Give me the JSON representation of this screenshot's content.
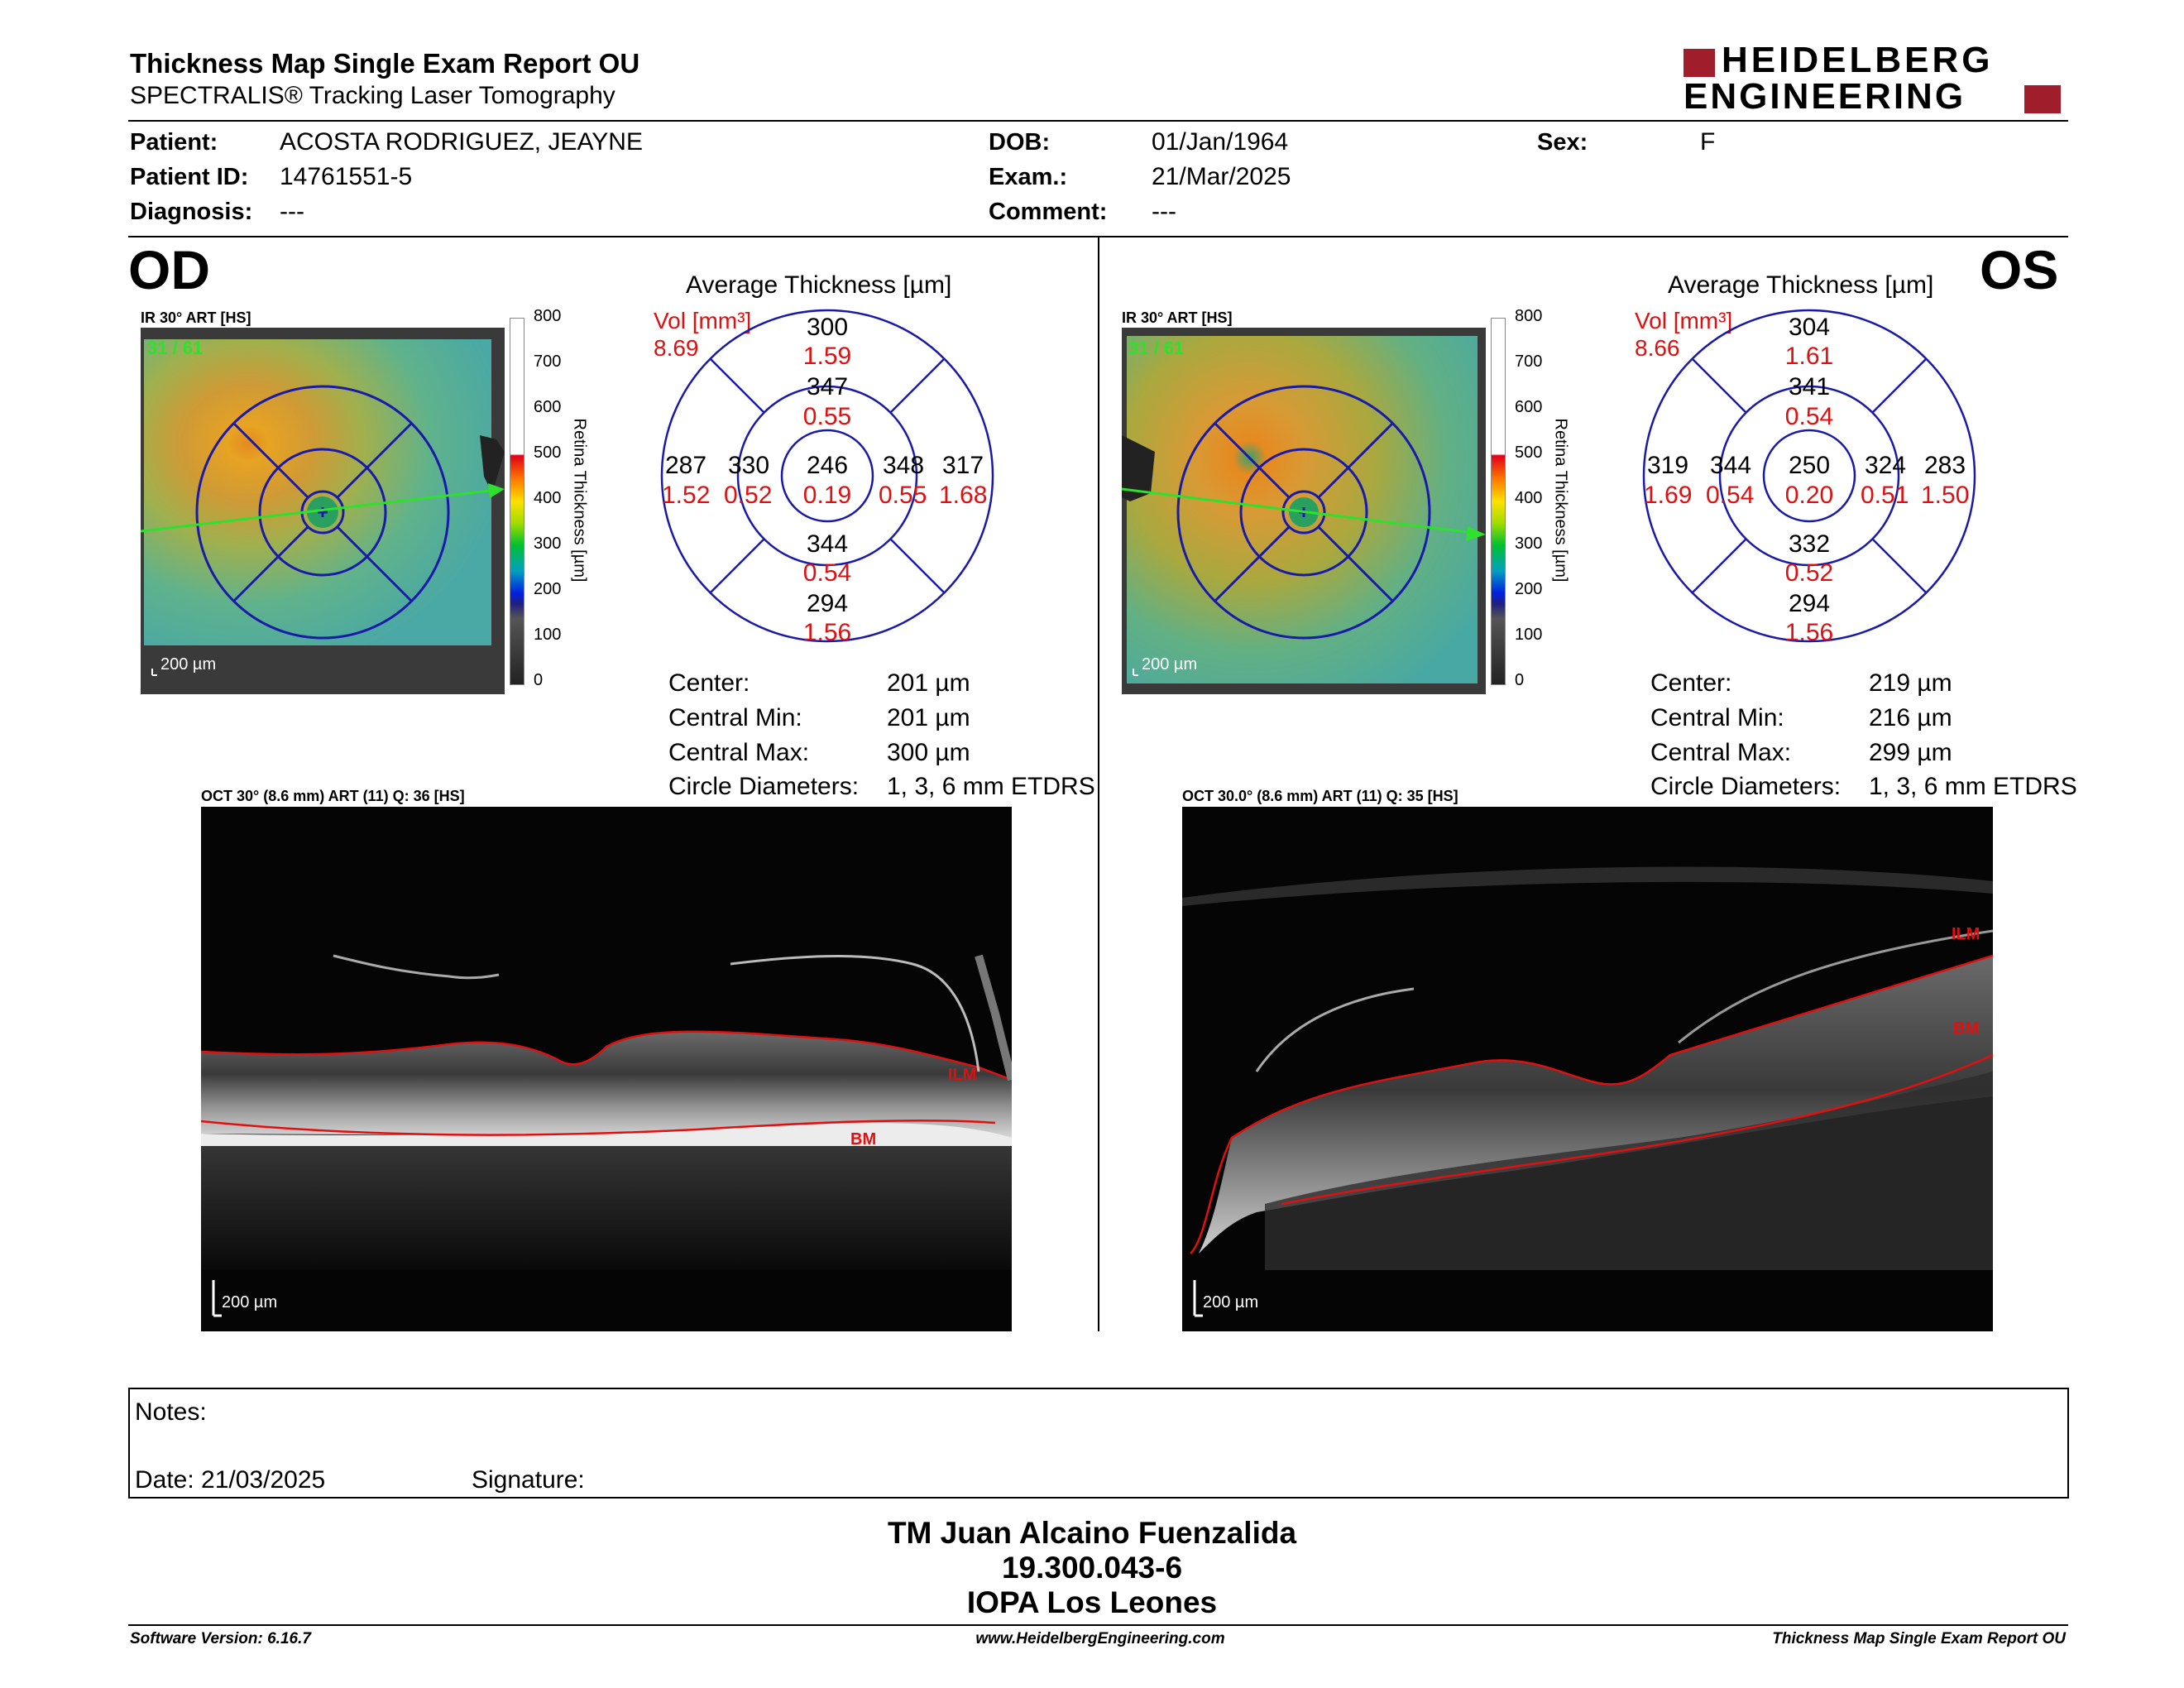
{
  "header": {
    "title": "Thickness Map Single Exam Report OU",
    "subtitle": "SPECTRALIS® Tracking Laser Tomography",
    "logo_line1": "HEIDELBERG",
    "logo_line2": "ENGINEERING"
  },
  "patient": {
    "patient_label": "Patient:",
    "patient_value": "ACOSTA RODRIGUEZ, JEAYNE",
    "id_label": "Patient ID:",
    "id_value": "14761551-5",
    "diagnosis_label": "Diagnosis:",
    "diagnosis_value": "---",
    "dob_label": "DOB:",
    "dob_value": "01/Jan/1964",
    "exam_label": "Exam.:",
    "exam_value": "21/Mar/2025",
    "comment_label": "Comment:",
    "comment_value": "---",
    "sex_label": "Sex:",
    "sex_value": "F"
  },
  "colorbar": {
    "ticks": [
      "800",
      "700",
      "600",
      "500",
      "400",
      "300",
      "200",
      "100",
      "0"
    ],
    "label": "Retina Thickness [µm]"
  },
  "od": {
    "eye": "OD",
    "ir_title": "IR 30° ART [HS]",
    "frame": "31 / 61",
    "scale": "200 µm",
    "avg_title": "Average Thickness [µm]",
    "vol_label": "Vol [mm³]",
    "vol_value": "8.69",
    "center_t": "246",
    "center_v": "0.19",
    "inner_sup_t": "347",
    "inner_sup_v": "0.55",
    "inner_inf_t": "344",
    "inner_inf_v": "0.54",
    "inner_left_t": "330",
    "inner_left_v": "0.52",
    "inner_right_t": "348",
    "inner_right_v": "0.55",
    "outer_sup_t": "300",
    "outer_sup_v": "1.59",
    "outer_inf_t": "294",
    "outer_inf_v": "1.56",
    "outer_left_t": "287",
    "outer_left_v": "1.52",
    "outer_right_t": "317",
    "outer_right_v": "1.68",
    "center_label": "Center:",
    "center_value": "201 µm",
    "cmin_label": "Central Min:",
    "cmin_value": "201 µm",
    "cmax_label": "Central Max:",
    "cmax_value": "300 µm",
    "diam_label": "Circle Diameters:",
    "diam_value": "1, 3, 6 mm ETDRS",
    "oct_title": "OCT 30° (8.6 mm) ART (11) Q: 36 [HS]",
    "oct_scale": "200 µm",
    "ilm": "ILM",
    "bm": "BM"
  },
  "os": {
    "eye": "OS",
    "ir_title": "IR 30° ART [HS]",
    "frame": "31 / 61",
    "scale": "200 µm",
    "avg_title": "Average Thickness [µm]",
    "vol_label": "Vol [mm³]",
    "vol_value": "8.66",
    "center_t": "250",
    "center_v": "0.20",
    "inner_sup_t": "341",
    "inner_sup_v": "0.54",
    "inner_inf_t": "332",
    "inner_inf_v": "0.52",
    "inner_left_t": "344",
    "inner_left_v": "0.54",
    "inner_right_t": "324",
    "inner_right_v": "0.51",
    "outer_sup_t": "304",
    "outer_sup_v": "1.61",
    "outer_inf_t": "294",
    "outer_inf_v": "1.56",
    "outer_left_t": "319",
    "outer_left_v": "1.69",
    "outer_right_t": "283",
    "outer_right_v": "1.50",
    "center_label": "Center:",
    "center_value": "219 µm",
    "cmin_label": "Central Min:",
    "cmin_value": "216 µm",
    "cmax_label": "Central Max:",
    "cmax_value": "299 µm",
    "diam_label": "Circle Diameters:",
    "diam_value": "1, 3, 6 mm ETDRS",
    "oct_title": "OCT 30.0° (8.6 mm) ART (11) Q: 35 [HS]",
    "oct_scale": "200 µm",
    "ilm": "ILM",
    "bm": "BM"
  },
  "notes": {
    "notes_label": "Notes:",
    "date_label": "Date: 21/03/2025",
    "signature_label": "Signature:"
  },
  "signoff": {
    "line1": "TM Juan Alcaino Fuenzalida",
    "line2": "19.300.043-6",
    "line3": "IOPA Los Leones"
  },
  "footer": {
    "version": "Software Version: 6.16.7",
    "website": "www.HeidelbergEngineering.com",
    "report": "Thickness Map Single Exam Report OU"
  },
  "colors": {
    "brand_red": "#a01d2c",
    "grid_blue": "#1a1aa8",
    "value_red": "#d11"
  }
}
